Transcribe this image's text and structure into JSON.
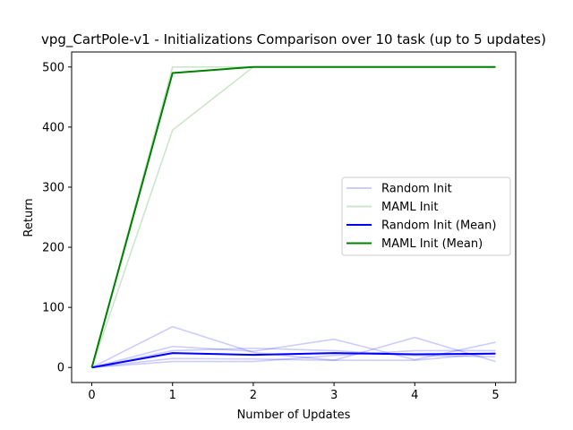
{
  "chart_data": {
    "type": "line",
    "title": "vpg_CartPole-v1 - Initializations Comparison over 10 task (up to 5 updates)",
    "xlabel": "Number of Updates",
    "ylabel": "Return",
    "x": [
      0,
      1,
      2,
      3,
      4,
      5
    ],
    "xlim": [
      -0.25,
      5.25
    ],
    "ylim": [
      -25,
      525
    ],
    "xticks": [
      0,
      1,
      2,
      3,
      4,
      5
    ],
    "yticks": [
      0,
      100,
      200,
      300,
      400,
      500
    ],
    "grid": false,
    "legend_position": "center-right",
    "series": [
      {
        "name": "Random Init",
        "role": "individual",
        "color": "#0000ff",
        "opacity": 0.2,
        "values": [
          0,
          68,
          25,
          12,
          50,
          10
        ]
      },
      {
        "name": "",
        "role": "individual",
        "color": "#0000ff",
        "opacity": 0.2,
        "values": [
          0,
          35,
          27,
          47,
          13,
          42
        ]
      },
      {
        "name": "",
        "role": "individual",
        "color": "#0000ff",
        "opacity": 0.2,
        "values": [
          0,
          28,
          32,
          28,
          20,
          18
        ]
      },
      {
        "name": "",
        "role": "individual",
        "color": "#0000ff",
        "opacity": 0.2,
        "values": [
          0,
          10,
          10,
          20,
          28,
          28
        ]
      },
      {
        "name": "",
        "role": "individual",
        "color": "#0000ff",
        "opacity": 0.2,
        "values": [
          0,
          15,
          14,
          12,
          12,
          24
        ]
      },
      {
        "name": "MAML Init",
        "role": "individual",
        "color": "#008000",
        "opacity": 0.2,
        "values": [
          0,
          395,
          500,
          500,
          500,
          500
        ]
      },
      {
        "name": "",
        "role": "individual",
        "color": "#008000",
        "opacity": 0.2,
        "values": [
          0,
          500,
          500,
          500,
          500,
          500
        ]
      },
      {
        "name": "Random Init (Mean)",
        "role": "mean",
        "color": "#0000ff",
        "opacity": 1,
        "values": [
          0,
          24,
          21,
          24,
          22,
          23
        ]
      },
      {
        "name": "MAML Init (Mean)",
        "role": "mean",
        "color": "#008000",
        "opacity": 1,
        "values": [
          0,
          490,
          500,
          500,
          500,
          500
        ]
      }
    ],
    "legend": [
      {
        "label": "Random Init",
        "color": "#0000ff",
        "opacity": 0.2
      },
      {
        "label": "MAML Init",
        "color": "#008000",
        "opacity": 0.2
      },
      {
        "label": "Random Init (Mean)",
        "color": "#0000ff",
        "opacity": 1
      },
      {
        "label": "MAML Init (Mean)",
        "color": "#008000",
        "opacity": 1
      }
    ]
  }
}
